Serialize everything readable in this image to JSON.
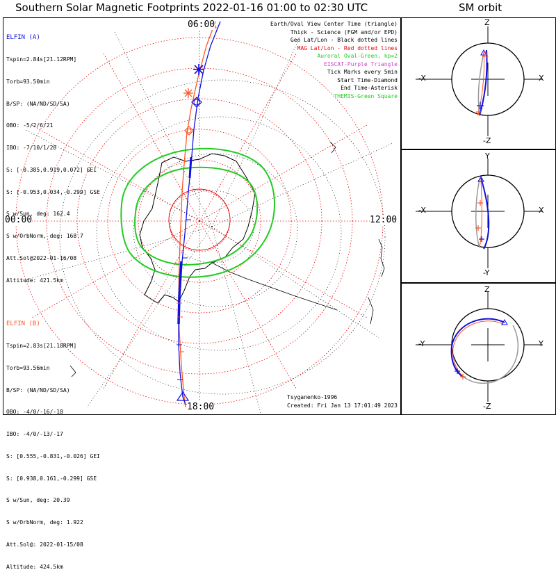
{
  "titles": {
    "main": "Southern Solar Magnetic Footprints 2022-01-16 01:00 to 02:30 UTC",
    "orbit": "SM orbit"
  },
  "time_labels": {
    "top": "06:00",
    "left": "00:00",
    "right": "12:00",
    "bottom": "18:00"
  },
  "elfin_a": {
    "name": "ELFIN (A)",
    "color": "#1010e0",
    "lines": [
      "Tspin=2.84s[21.12RPM]",
      "Torb=93.50min",
      "B/SP: (NA/ND/SD/SA)",
      "OBO: -5/2/6/21",
      "IBO: -7/10/1/28",
      "S: [-0.385,0.919,0.072] GEI",
      "S: [-0.953,0.034,-0.299] GSE",
      "S w/Sun, deg: 162.4",
      "S w/OrbNorm, deg: 168.7",
      "Att.Sol@2022-01-16/08",
      "Altitude: 421.5km"
    ]
  },
  "elfin_b": {
    "name": "ELFIN (B)",
    "color": "#ff5522",
    "lines": [
      "Tspin=2.83s[21.18RPM]",
      "Torb=93.56min",
      "B/SP: (NA/ND/SD/SA)",
      "OBO: -4/0/-16/-18",
      "IBO: -4/0/-13/-17",
      "S: [0.555,-0.831,-0.026] GEI",
      "S: [0.938,0.161,-0.299] GSE",
      "S w/Sun, deg: 20.39",
      "S w/OrbNorm, deg: 1.922",
      "Att.Sol@: 2022-01-15/08",
      "Altitude: 424.5km"
    ]
  },
  "legend": [
    {
      "text": "Earth/Oval View Center Time (triangle)",
      "color": "#000000"
    },
    {
      "text": "Thick - Science (FGM and/or EPD)",
      "color": "#000000"
    },
    {
      "text": "Geo Lat/Lon - Black dotted lines",
      "color": "#000000"
    },
    {
      "text": "MAG Lat/Lon - Red dotted lines",
      "color": "#ee0000"
    },
    {
      "text": "Auroral Oval-Green, kp=2",
      "color": "#22cc22"
    },
    {
      "text": "EISCAT-Purple Triangle",
      "color": "#cc44cc"
    },
    {
      "text": "Tick Marks every 5min",
      "color": "#000000"
    },
    {
      "text": "Start Time-Diamond",
      "color": "#000000"
    },
    {
      "text": "End Time-Asterisk",
      "color": "#000000"
    },
    {
      "text": "THEMIS-Green Square",
      "color": "#22cc22"
    }
  ],
  "credits": {
    "model": "Tsyganenko-1996",
    "created": "Created: Fri Jan 13 17:01:49 2023"
  },
  "sm_orbit": [
    {
      "up": "Z",
      "down": "-Z",
      "left": "-X",
      "right": "X"
    },
    {
      "up": "Y",
      "down": "-Y",
      "left": "-X",
      "right": "X"
    },
    {
      "up": "Z",
      "down": "-Z",
      "left": "-Y",
      "right": "Y"
    }
  ],
  "colors": {
    "mag_grid": "#ee0000",
    "geo_grid": "#000000",
    "oval": "#22cc22",
    "track_a": "#1010e0",
    "track_b": "#ff5522",
    "orbit_gray": "#999999"
  }
}
